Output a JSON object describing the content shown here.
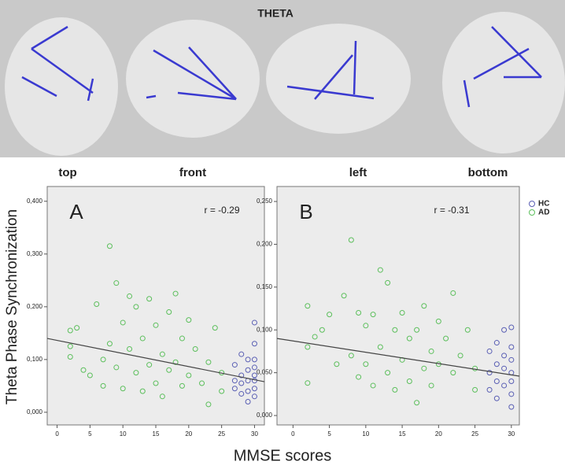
{
  "figure": {
    "title": "THETA",
    "views": [
      "top",
      "front",
      "left",
      "bottom"
    ],
    "ylabel": "Theta Phase Synchronization",
    "xlabel": "MMSE scores"
  },
  "chart_data": [
    {
      "type": "scatter",
      "panel": "A",
      "annotation": "r = -0.29",
      "xlim": [
        -1.5,
        31.5
      ],
      "ylim": [
        -0.024,
        0.428
      ],
      "xticks": [
        0,
        5,
        10,
        15,
        20,
        25,
        30
      ],
      "yticks": [
        {
          "value": 0,
          "label": "0,000"
        },
        {
          "value": 0.1,
          "label": "0,100"
        },
        {
          "value": 0.2,
          "label": "0,200"
        },
        {
          "value": 0.3,
          "label": "0,300"
        },
        {
          "value": 0.4,
          "label": "0,400"
        }
      ],
      "fit": {
        "x": [
          -1.5,
          31.5
        ],
        "y": [
          0.14,
          0.058
        ]
      },
      "series": [
        {
          "name": "HC",
          "color": "#5a5fb4",
          "x": [
            27,
            27,
            27,
            28,
            28,
            28,
            28,
            29,
            29,
            29,
            29,
            29,
            30,
            30,
            30,
            30,
            30,
            30,
            30,
            30
          ],
          "values": [
            0.06,
            0.045,
            0.09,
            0.11,
            0.07,
            0.035,
            0.055,
            0.1,
            0.08,
            0.06,
            0.04,
            0.02,
            0.17,
            0.13,
            0.1,
            0.085,
            0.07,
            0.06,
            0.045,
            0.03
          ]
        },
        {
          "name": "AD",
          "color": "#5cbf5c",
          "x": [
            2,
            2,
            2,
            3,
            4,
            5,
            6,
            7,
            7,
            8,
            8,
            9,
            9,
            10,
            10,
            11,
            11,
            12,
            12,
            13,
            13,
            14,
            14,
            15,
            15,
            16,
            16,
            17,
            17,
            18,
            18,
            19,
            19,
            20,
            20,
            21,
            22,
            23,
            23,
            24,
            25,
            25
          ],
          "values": [
            0.155,
            0.125,
            0.105,
            0.16,
            0.08,
            0.07,
            0.205,
            0.1,
            0.05,
            0.315,
            0.13,
            0.245,
            0.085,
            0.17,
            0.045,
            0.22,
            0.12,
            0.2,
            0.075,
            0.14,
            0.04,
            0.215,
            0.09,
            0.165,
            0.055,
            0.11,
            0.03,
            0.19,
            0.08,
            0.225,
            0.095,
            0.14,
            0.05,
            0.175,
            0.07,
            0.12,
            0.055,
            0.095,
            0.015,
            0.16,
            0.075,
            0.04
          ]
        }
      ]
    },
    {
      "type": "scatter",
      "panel": "B",
      "annotation": "r = -0.31",
      "xlim": [
        -2.2,
        31.1
      ],
      "ylim": [
        -0.011,
        0.2675
      ],
      "xticks": [
        0,
        5,
        10,
        15,
        20,
        25,
        30
      ],
      "yticks": [
        {
          "value": 0,
          "label": "0,000"
        },
        {
          "value": 0.05,
          "label": "0,050"
        },
        {
          "value": 0.1,
          "label": "0,100"
        },
        {
          "value": 0.15,
          "label": "0,150"
        },
        {
          "value": 0.2,
          "label": "0,200"
        },
        {
          "value": 0.25,
          "label": "0,250"
        }
      ],
      "fit": {
        "x": [
          -2.2,
          31.1
        ],
        "y": [
          0.09,
          0.046
        ]
      },
      "series": [
        {
          "name": "HC",
          "color": "#5a5fb4",
          "x": [
            27,
            27,
            27,
            28,
            28,
            28,
            28,
            29,
            29,
            29,
            29,
            30,
            30,
            30,
            30,
            30,
            30,
            30
          ],
          "values": [
            0.075,
            0.05,
            0.03,
            0.085,
            0.06,
            0.04,
            0.02,
            0.1,
            0.07,
            0.055,
            0.035,
            0.103,
            0.08,
            0.065,
            0.05,
            0.04,
            0.025,
            0.01
          ]
        },
        {
          "name": "AD",
          "color": "#5cbf5c",
          "x": [
            2,
            2,
            2,
            3,
            4,
            5,
            6,
            7,
            8,
            8,
            9,
            9,
            10,
            10,
            11,
            11,
            12,
            12,
            13,
            13,
            14,
            14,
            15,
            15,
            16,
            16,
            17,
            17,
            18,
            18,
            19,
            19,
            20,
            20,
            21,
            22,
            22,
            23,
            24,
            25,
            25
          ],
          "values": [
            0.128,
            0.08,
            0.038,
            0.092,
            0.1,
            0.118,
            0.06,
            0.14,
            0.205,
            0.07,
            0.12,
            0.045,
            0.105,
            0.06,
            0.118,
            0.035,
            0.17,
            0.08,
            0.155,
            0.05,
            0.1,
            0.03,
            0.12,
            0.065,
            0.09,
            0.04,
            0.1,
            0.015,
            0.128,
            0.055,
            0.075,
            0.035,
            0.11,
            0.06,
            0.09,
            0.143,
            0.05,
            0.07,
            0.1,
            0.055,
            0.03
          ]
        }
      ]
    }
  ]
}
